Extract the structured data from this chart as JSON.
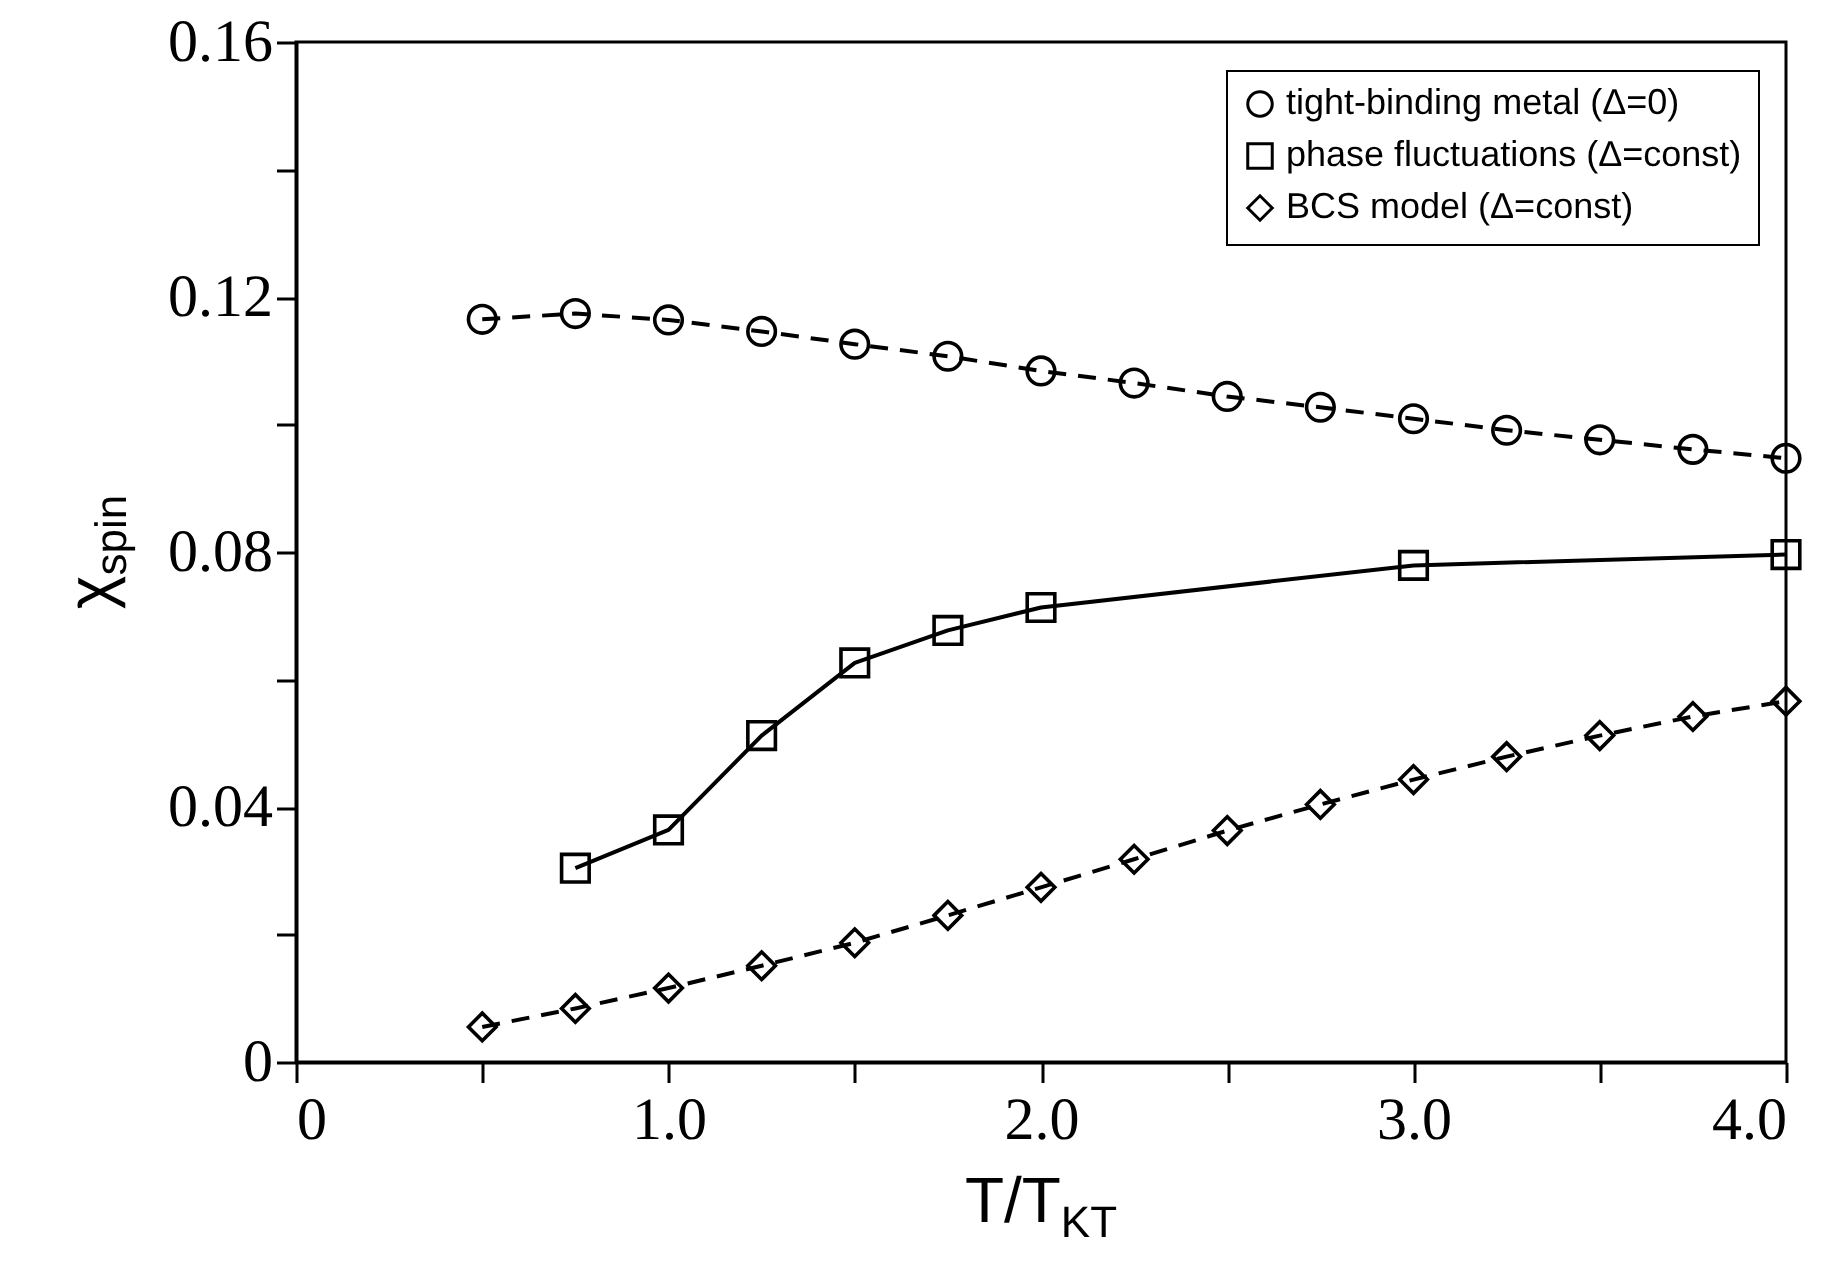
{
  "chart_data": {
    "type": "line",
    "xlabel": "T/T$_{KT}$",
    "ylabel": "χ$_{spin}$",
    "xlim": [
      0,
      4
    ],
    "xticks": [
      0,
      {
        "value": 0.5,
        "label": null
      },
      {
        "value": 1,
        "label": "1.0"
      },
      {
        "value": 1.5,
        "label": null
      },
      {
        "value": 2,
        "label": "2.0"
      },
      {
        "value": 2.5,
        "label": null
      },
      {
        "value": 3,
        "label": "3.0"
      },
      {
        "value": 3.5,
        "label": null
      },
      {
        "value": 4,
        "label": "4.0"
      }
    ],
    "ylim": [
      0,
      0.16
    ],
    "yticks": [
      0,
      {
        "value": 0.02,
        "label": null
      },
      0.04,
      {
        "value": 0.06,
        "label": null
      },
      0.08,
      {
        "value": 0.1,
        "label": null
      },
      0.12,
      {
        "value": 0.14,
        "label": null
      },
      0.16
    ],
    "grid": false,
    "legend": "top right",
    "series": [
      {
        "name": "tight-binding metal (Δ=0)",
        "color": "#000000",
        "marker": "circle",
        "line_style": "dashed",
        "x": [
          0.5,
          0.75,
          1.0,
          1.25,
          1.5,
          1.75,
          2.0,
          2.25,
          2.5,
          2.75,
          3.0,
          3.25,
          3.5,
          3.75,
          4.0
        ],
        "values": [
          0.1165,
          0.1174,
          0.1164,
          0.1146,
          0.1126,
          0.1107,
          0.1084,
          0.1065,
          0.1044,
          0.1027,
          0.1009,
          0.0991,
          0.0976,
          0.0961,
          0.0947
        ]
      },
      {
        "name": "phase fluctuations (Δ=const)",
        "color": "#000000",
        "marker": "square",
        "line_style": "solid",
        "x": [
          0.75,
          1.0,
          1.25,
          1.5,
          1.75,
          2.0,
          3.0,
          4.0
        ],
        "values": [
          0.0304,
          0.0364,
          0.0512,
          0.0626,
          0.0677,
          0.0713,
          0.0779,
          0.0796
        ]
      },
      {
        "name": "BCS model (Δ=const)",
        "color": "#000000",
        "marker": "diamond",
        "line_style": "dashed",
        "x": [
          0.5,
          0.75,
          1.0,
          1.25,
          1.5,
          1.75,
          2.0,
          2.25,
          2.5,
          2.75,
          3.0,
          3.25,
          3.5,
          3.75,
          4.0
        ],
        "values": [
          0.0055,
          0.0084,
          0.0116,
          0.0151,
          0.0187,
          0.023,
          0.0274,
          0.0318,
          0.0363,
          0.0404,
          0.0443,
          0.0479,
          0.0512,
          0.0542,
          0.0566
        ]
      }
    ]
  }
}
